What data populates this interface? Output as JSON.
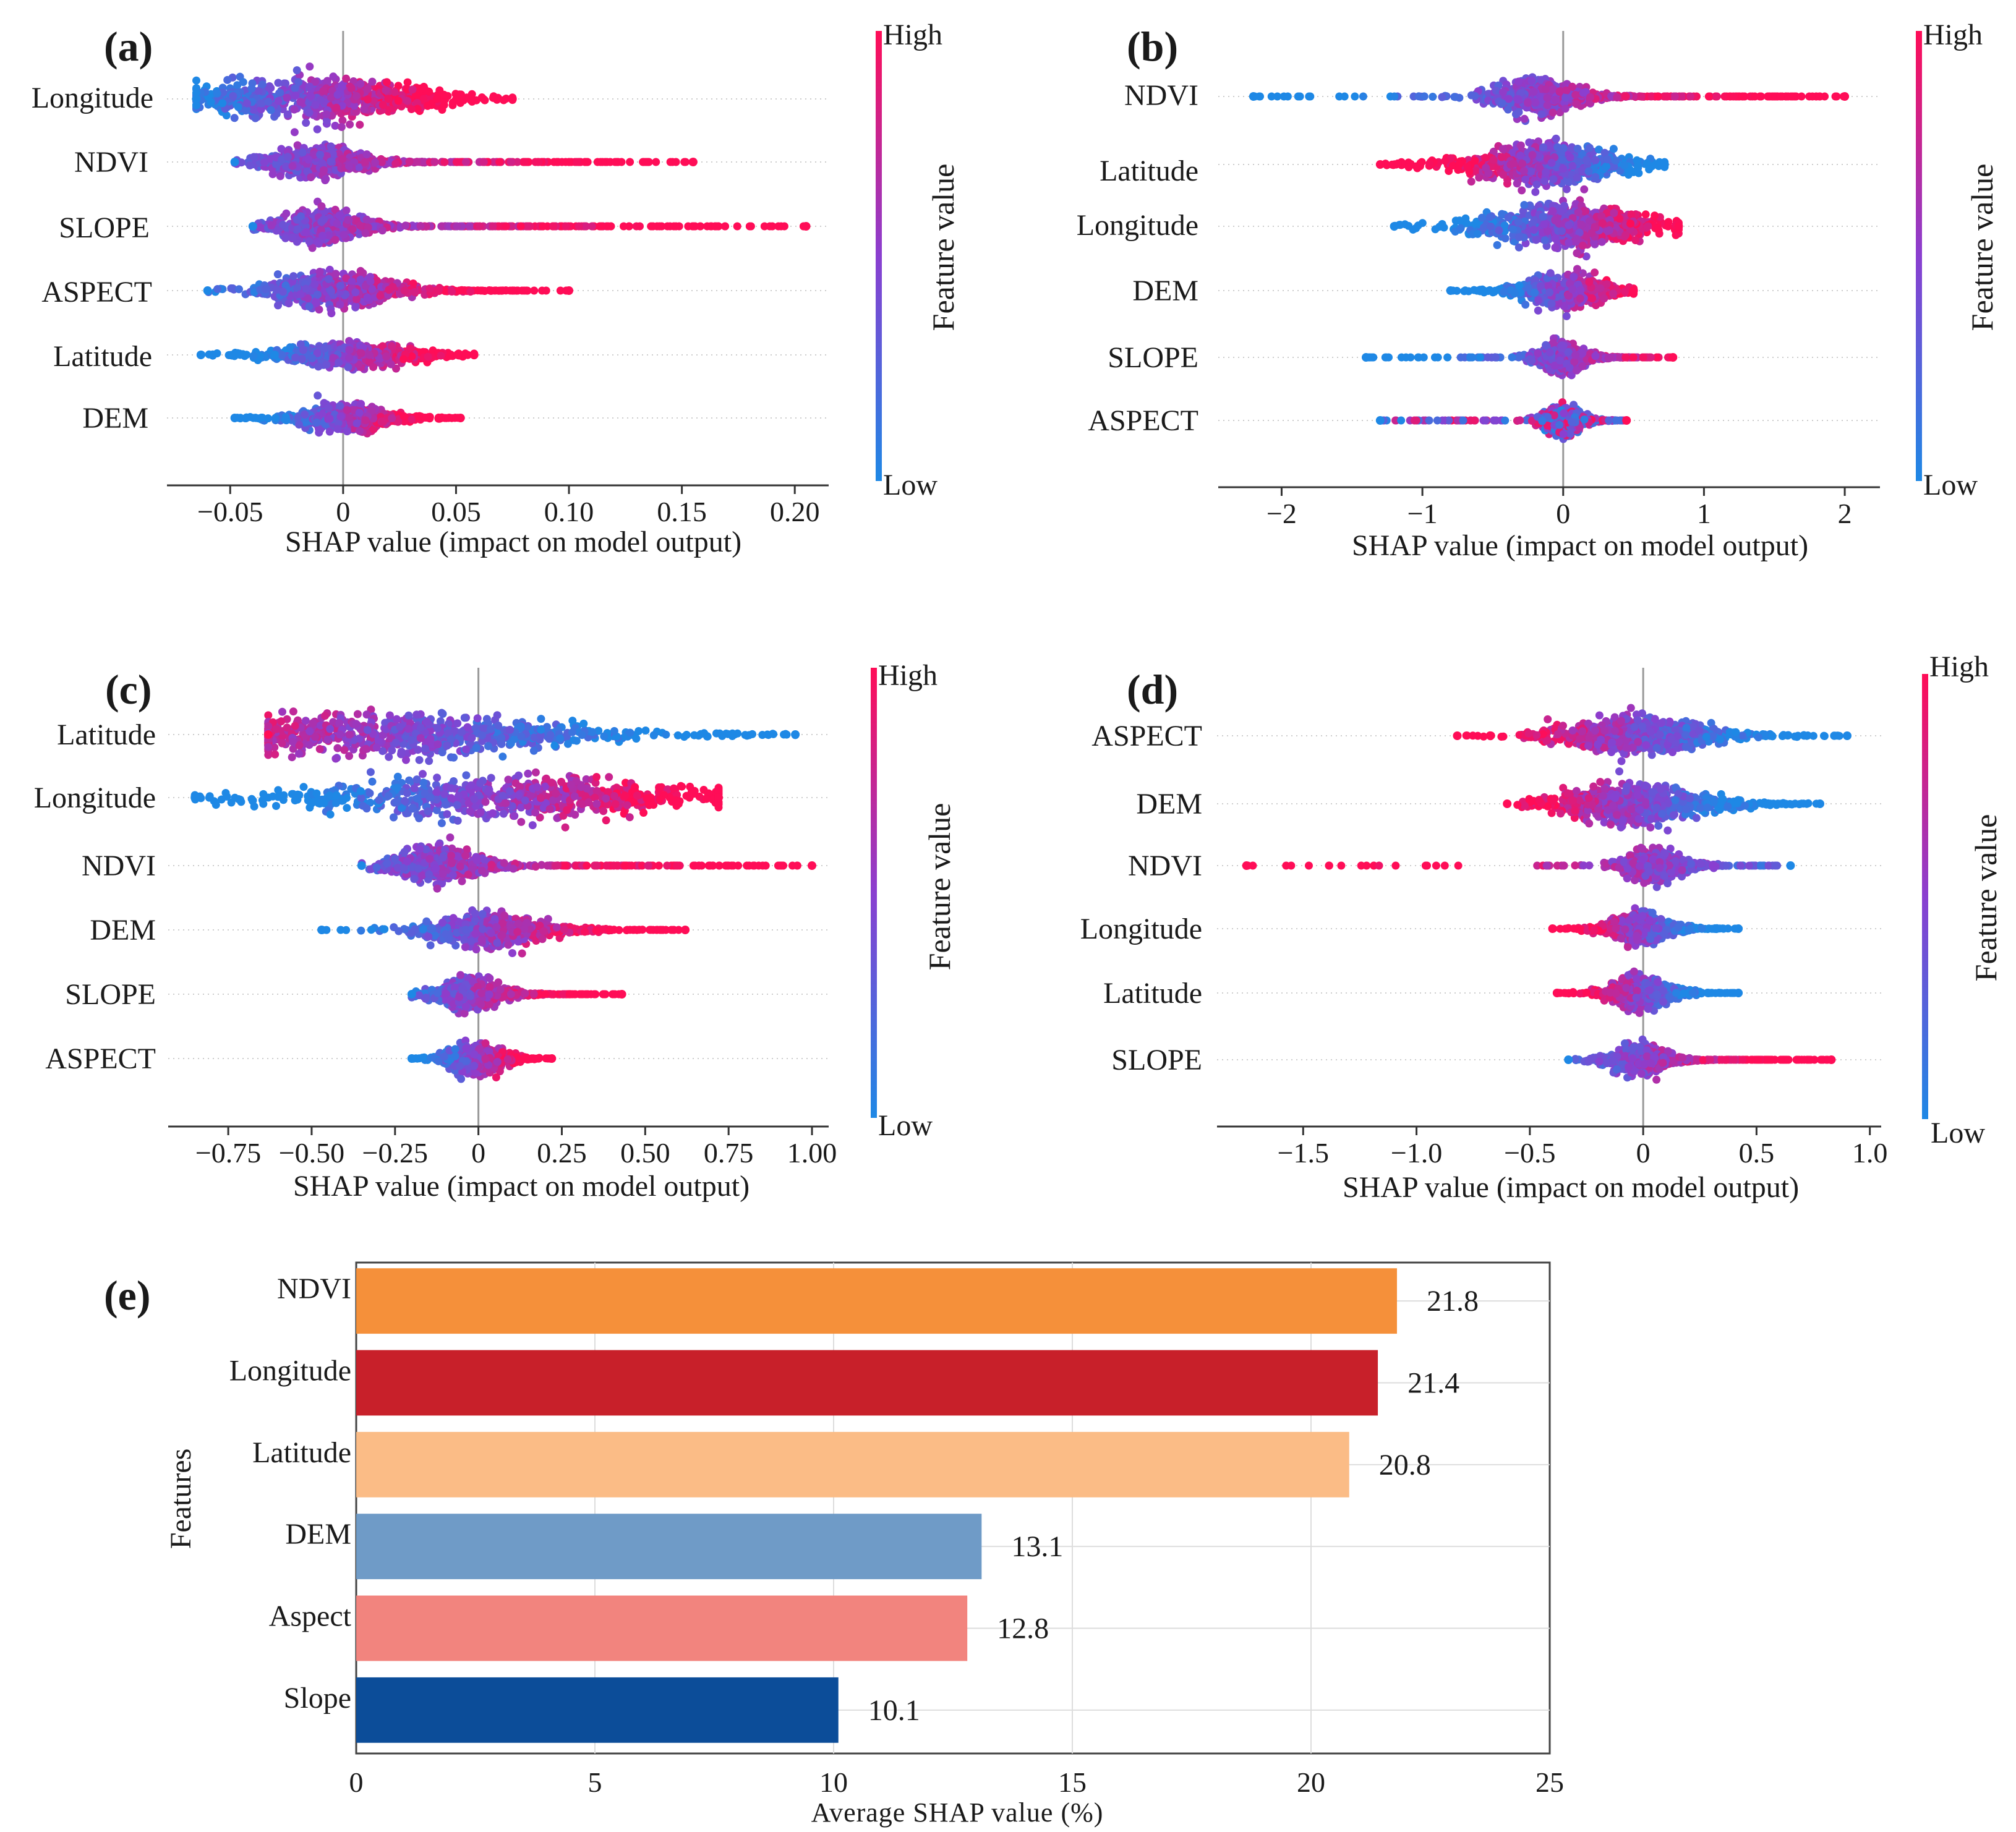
{
  "colors": {
    "low": "#1e88e5",
    "mid": "#8a3fd0",
    "high": "#ff0d57",
    "zero_line": "#999999",
    "axis": "#333333",
    "grid": "#dddddd"
  },
  "axis_title": "SHAP value (impact on model output)",
  "colorbar": {
    "high": "High",
    "low": "Low",
    "title": "Feature value"
  },
  "chart_data": [
    {
      "id": "a",
      "type": "scatter",
      "subtype": "beeswarm",
      "panel_label": "(a)",
      "xlabel": "SHAP value (impact on model output)",
      "xlim": [
        -0.078,
        0.215
      ],
      "ticks": [
        -0.05,
        0,
        0.05,
        0.1,
        0.15,
        0.2
      ],
      "tick_labels": [
        "−0.05",
        "0",
        "0.05",
        "0.10",
        "0.15",
        "0.20"
      ],
      "features": [
        {
          "name": "Longitude",
          "min": -0.065,
          "max": 0.075,
          "center": -0.015,
          "spread": 0.028,
          "width": 1.0,
          "direction": 1
        },
        {
          "name": "NDVI",
          "min": -0.048,
          "max": 0.155,
          "center": -0.012,
          "spread": 0.012,
          "width": 0.75,
          "direction": 1
        },
        {
          "name": "SLOPE",
          "min": -0.04,
          "max": 0.205,
          "center": -0.01,
          "spread": 0.011,
          "width": 0.8,
          "direction": 1
        },
        {
          "name": "ASPECT",
          "min": -0.06,
          "max": 0.1,
          "center": -0.005,
          "spread": 0.016,
          "width": 0.8,
          "direction": 1
        },
        {
          "name": "Latitude",
          "min": -0.063,
          "max": 0.058,
          "center": 0.002,
          "spread": 0.018,
          "width": 0.55,
          "direction": 1
        },
        {
          "name": "DEM",
          "min": -0.048,
          "max": 0.052,
          "center": -0.001,
          "spread": 0.012,
          "width": 0.6,
          "direction": 1
        }
      ]
    },
    {
      "id": "b",
      "type": "scatter",
      "subtype": "beeswarm",
      "panel_label": "(b)",
      "xlabel": "SHAP value (impact on model output)",
      "xlim": [
        -2.45,
        2.25
      ],
      "ticks": [
        -2,
        -1,
        0,
        1,
        2
      ],
      "tick_labels": [
        "−2",
        "−1",
        "0",
        "1",
        "2"
      ],
      "features": [
        {
          "name": "NDVI",
          "min": -2.2,
          "max": 2.0,
          "center": -0.2,
          "spread": 0.18,
          "width": 0.8,
          "direction": 1
        },
        {
          "name": "Latitude",
          "min": -1.3,
          "max": 0.72,
          "center": -0.15,
          "spread": 0.3,
          "width": 1.0,
          "direction": -1
        },
        {
          "name": "Longitude",
          "min": -1.2,
          "max": 0.82,
          "center": 0.0,
          "spread": 0.35,
          "width": 1.0,
          "direction": 1
        },
        {
          "name": "DEM",
          "min": -0.8,
          "max": 0.5,
          "center": 0.0,
          "spread": 0.18,
          "width": 0.7,
          "direction": 1
        },
        {
          "name": "SLOPE",
          "min": -1.4,
          "max": 0.78,
          "center": -0.02,
          "spread": 0.1,
          "width": 0.7,
          "direction": 1
        },
        {
          "name": "ASPECT",
          "min": -1.3,
          "max": 0.45,
          "center": 0.0,
          "spread": 0.08,
          "width": 0.7,
          "direction": 0
        }
      ]
    },
    {
      "id": "c",
      "type": "scatter",
      "subtype": "beeswarm",
      "panel_label": "(c)",
      "xlabel": "SHAP value (impact on model output)",
      "xlim": [
        -0.93,
        1.05
      ],
      "ticks": [
        -0.75,
        -0.5,
        -0.25,
        0,
        0.25,
        0.5,
        0.75,
        1.0
      ],
      "tick_labels": [
        "−0.75",
        "−0.50",
        "−0.25",
        "0",
        "0.25",
        "0.50",
        "0.75",
        "1.00"
      ],
      "features": [
        {
          "name": "Latitude",
          "min": -0.63,
          "max": 0.95,
          "center": -0.28,
          "spread": 0.3,
          "width": 1.0,
          "direction": -1
        },
        {
          "name": "Longitude",
          "min": -0.85,
          "max": 0.72,
          "center": 0.05,
          "spread": 0.35,
          "width": 1.0,
          "direction": 1
        },
        {
          "name": "NDVI",
          "min": -0.35,
          "max": 1.0,
          "center": -0.13,
          "spread": 0.08,
          "width": 0.8,
          "direction": 1
        },
        {
          "name": "DEM",
          "min": -0.47,
          "max": 0.62,
          "center": 0.02,
          "spread": 0.1,
          "width": 0.8,
          "direction": 1
        },
        {
          "name": "SLOPE",
          "min": -0.2,
          "max": 0.43,
          "center": -0.03,
          "spread": 0.06,
          "width": 0.7,
          "direction": 1
        },
        {
          "name": "ASPECT",
          "min": -0.2,
          "max": 0.22,
          "center": -0.01,
          "spread": 0.05,
          "width": 0.7,
          "direction": 1
        }
      ]
    },
    {
      "id": "d",
      "type": "scatter",
      "subtype": "beeswarm",
      "panel_label": "(d)",
      "xlabel": "SHAP value (impact on model output)",
      "xlim": [
        -1.88,
        1.05
      ],
      "ticks": [
        -1.5,
        -1.0,
        -0.5,
        0,
        0.5,
        1.0
      ],
      "tick_labels": [
        "−1.5",
        "−1.0",
        "−0.5",
        "0",
        "0.5",
        "1.0"
      ],
      "features": [
        {
          "name": "ASPECT",
          "min": -0.82,
          "max": 0.9,
          "center": -0.05,
          "spread": 0.2,
          "width": 0.8,
          "direction": -1
        },
        {
          "name": "DEM",
          "min": -0.6,
          "max": 0.78,
          "center": -0.05,
          "spread": 0.18,
          "width": 1.0,
          "direction": -1
        },
        {
          "name": "NDVI",
          "min": -1.75,
          "max": 0.65,
          "center": 0.05,
          "spread": 0.08,
          "width": 0.7,
          "direction": -1
        },
        {
          "name": "Longitude",
          "min": -0.4,
          "max": 0.42,
          "center": -0.02,
          "spread": 0.08,
          "width": 0.7,
          "direction": -1
        },
        {
          "name": "Latitude",
          "min": -0.38,
          "max": 0.42,
          "center": -0.02,
          "spread": 0.08,
          "width": 0.7,
          "direction": -1
        },
        {
          "name": "SLOPE",
          "min": -0.33,
          "max": 0.83,
          "center": -0.02,
          "spread": 0.08,
          "width": 0.65,
          "direction": 1
        }
      ]
    },
    {
      "id": "e",
      "type": "bar",
      "orientation": "horizontal",
      "panel_label": "(e)",
      "xlabel": "Average SHAP value (%)",
      "ylabel": "Features",
      "xlim": [
        0,
        25
      ],
      "ticks": [
        0,
        5,
        10,
        15,
        20,
        25
      ],
      "tick_labels": [
        "0",
        "5",
        "10",
        "15",
        "20",
        "25"
      ],
      "categories": [
        "NDVI",
        "Longitude",
        "Latitude",
        "DEM",
        "Aspect",
        "Slope"
      ],
      "values": [
        21.8,
        21.4,
        20.8,
        13.1,
        12.8,
        10.1
      ],
      "value_labels": [
        "21.8",
        "21.4",
        "20.8",
        "13.1",
        "12.8",
        "10.1"
      ],
      "bar_colors": [
        "#f5903a",
        "#c8202a",
        "#fbbc86",
        "#6f9bc7",
        "#f2847e",
        "#0c4d99"
      ]
    }
  ]
}
